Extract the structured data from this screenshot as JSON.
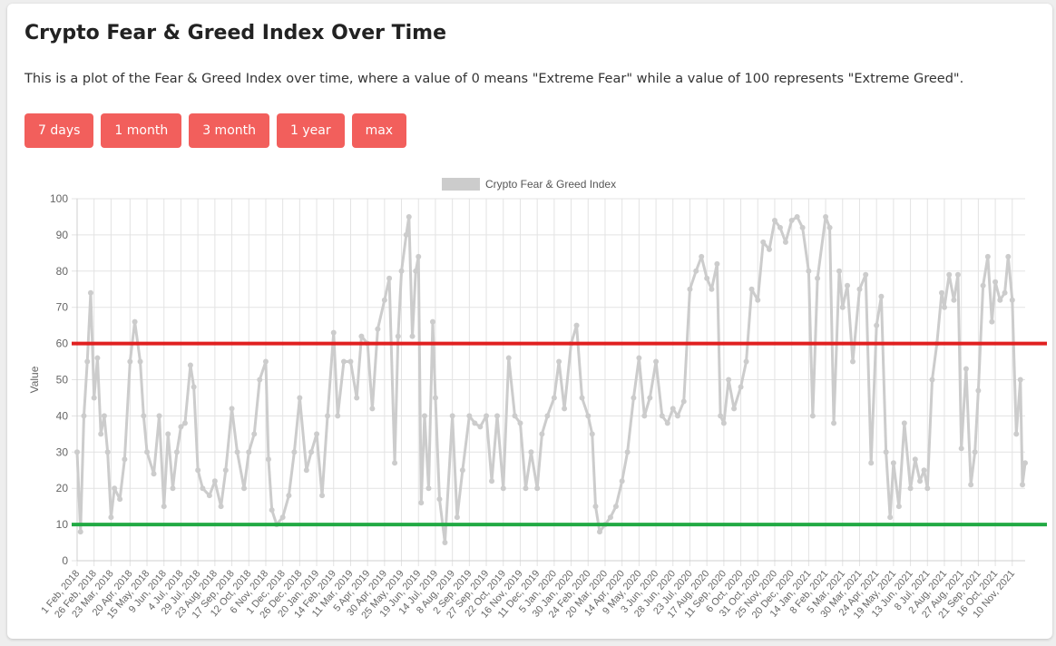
{
  "page": {
    "title": "Crypto Fear & Greed Index Over Time",
    "description": "This is a plot of the Fear & Greed Index over time, where a value of 0 means \"Extreme Fear\" while a value of 100 represents \"Extreme Greed\"."
  },
  "buttons": [
    {
      "label": "7 days"
    },
    {
      "label": "1 month"
    },
    {
      "label": "3 month"
    },
    {
      "label": "1 year"
    },
    {
      "label": "max"
    }
  ],
  "colors": {
    "accent": "#f25f5c",
    "series": "#cccccc",
    "upper_line": "#e02020",
    "lower_line": "#22aa44"
  },
  "chart_data": {
    "type": "line",
    "title": "",
    "xlabel": "",
    "ylabel": "Value",
    "ylim": [
      0,
      100
    ],
    "yticks": [
      0,
      10,
      20,
      30,
      40,
      50,
      60,
      70,
      80,
      90,
      100
    ],
    "grid": true,
    "legend_position": "top-center",
    "xrange": [
      "1 Feb, 2018",
      "29 Nov, 2021"
    ],
    "x_tick_labels": [
      "1 Feb, 2018",
      "26 Feb, 2018",
      "23 Mar, 2018",
      "20 Apr, 2018",
      "15 May, 2018",
      "9 Jun, 2018",
      "4 Jul, 2018",
      "29 Jul, 2018",
      "23 Aug, 2018",
      "17 Sep, 2018",
      "12 Oct, 2018",
      "6 Nov, 2018",
      "1 Dec, 2018",
      "26 Dec, 2018",
      "20 Jan, 2019",
      "14 Feb, 2019",
      "11 Mar, 2019",
      "5 Apr, 2019",
      "30 Apr, 2019",
      "25 May, 2019",
      "19 Jun, 2019",
      "14 Jul, 2019",
      "8 Aug, 2019",
      "2 Sep, 2019",
      "27 Sep, 2019",
      "22 Oct, 2019",
      "16 Nov, 2019",
      "11 Dec, 2019",
      "5 Jan, 2020",
      "30 Jan, 2020",
      "24 Feb, 2020",
      "20 Mar, 2020",
      "14 Apr, 2020",
      "9 May, 2020",
      "3 Jun, 2020",
      "28 Jun, 2020",
      "23 Jul, 2020",
      "17 Aug, 2020",
      "11 Sep, 2020",
      "6 Oct, 2020",
      "31 Oct, 2020",
      "25 Nov, 2020",
      "20 Dec, 2020",
      "14 Jan, 2021",
      "8 Feb, 2021",
      "5 Mar, 2021",
      "30 Mar, 2021",
      "24 Apr, 2021",
      "19 May, 2021",
      "13 Jun, 2021",
      "8 Jul, 2021",
      "2 Aug, 2021",
      "27 Aug, 2021",
      "21 Sep, 2021",
      "16 Oct, 2021",
      "10 Nov, 2021"
    ],
    "series": [
      {
        "name": "Crypto Fear & Greed Index",
        "points": [
          [
            "1 Feb, 2018",
            30
          ],
          [
            "6 Feb, 2018",
            8
          ],
          [
            "11 Feb, 2018",
            40
          ],
          [
            "16 Feb, 2018",
            55
          ],
          [
            "21 Feb, 2018",
            74
          ],
          [
            "26 Feb, 2018",
            45
          ],
          [
            "3 Mar, 2018",
            56
          ],
          [
            "8 Mar, 2018",
            35
          ],
          [
            "13 Mar, 2018",
            40
          ],
          [
            "18 Mar, 2018",
            30
          ],
          [
            "23 Mar, 2018",
            12
          ],
          [
            "28 Mar, 2018",
            20
          ],
          [
            "5 Apr, 2018",
            17
          ],
          [
            "12 Apr, 2018",
            28
          ],
          [
            "20 Apr, 2018",
            55
          ],
          [
            "27 Apr, 2018",
            66
          ],
          [
            "5 May, 2018",
            55
          ],
          [
            "10 May, 2018",
            40
          ],
          [
            "15 May, 2018",
            30
          ],
          [
            "25 May, 2018",
            24
          ],
          [
            "2 Jun, 2018",
            40
          ],
          [
            "9 Jun, 2018",
            15
          ],
          [
            "15 Jun, 2018",
            35
          ],
          [
            "22 Jun, 2018",
            20
          ],
          [
            "28 Jun, 2018",
            30
          ],
          [
            "4 Jul, 2018",
            37
          ],
          [
            "10 Jul, 2018",
            38
          ],
          [
            "18 Jul, 2018",
            54
          ],
          [
            "23 Jul, 2018",
            48
          ],
          [
            "29 Jul, 2018",
            25
          ],
          [
            "5 Aug, 2018",
            20
          ],
          [
            "15 Aug, 2018",
            18
          ],
          [
            "23 Aug, 2018",
            22
          ],
          [
            "1 Sep, 2018",
            15
          ],
          [
            "8 Sep, 2018",
            25
          ],
          [
            "17 Sep, 2018",
            42
          ],
          [
            "25 Sep, 2018",
            30
          ],
          [
            "5 Oct, 2018",
            20
          ],
          [
            "12 Oct, 2018",
            30
          ],
          [
            "20 Oct, 2018",
            35
          ],
          [
            "28 Oct, 2018",
            50
          ],
          [
            "6 Nov, 2018",
            55
          ],
          [
            "10 Nov, 2018",
            28
          ],
          [
            "15 Nov, 2018",
            14
          ],
          [
            "22 Nov, 2018",
            10
          ],
          [
            "1 Dec, 2018",
            12
          ],
          [
            "10 Dec, 2018",
            18
          ],
          [
            "18 Dec, 2018",
            30
          ],
          [
            "26 Dec, 2018",
            45
          ],
          [
            "5 Jan, 2019",
            25
          ],
          [
            "12 Jan, 2019",
            30
          ],
          [
            "20 Jan, 2019",
            35
          ],
          [
            "28 Jan, 2019",
            18
          ],
          [
            "5 Feb, 2019",
            40
          ],
          [
            "14 Feb, 2019",
            63
          ],
          [
            "20 Feb, 2019",
            40
          ],
          [
            "1 Mar, 2019",
            55
          ],
          [
            "11 Mar, 2019",
            55
          ],
          [
            "20 Mar, 2019",
            45
          ],
          [
            "27 Mar, 2019",
            62
          ],
          [
            "5 Apr, 2019",
            60
          ],
          [
            "12 Apr, 2019",
            42
          ],
          [
            "20 Apr, 2019",
            64
          ],
          [
            "30 Apr, 2019",
            72
          ],
          [
            "7 May, 2019",
            78
          ],
          [
            "15 May, 2019",
            27
          ],
          [
            "20 May, 2019",
            62
          ],
          [
            "25 May, 2019",
            80
          ],
          [
            "1 Jun, 2019",
            90
          ],
          [
            "5 Jun, 2019",
            95
          ],
          [
            "10 Jun, 2019",
            62
          ],
          [
            "15 Jun, 2019",
            80
          ],
          [
            "19 Jun, 2019",
            84
          ],
          [
            "23 Jun, 2019",
            16
          ],
          [
            "28 Jun, 2019",
            40
          ],
          [
            "4 Jul, 2019",
            20
          ],
          [
            "10 Jul, 2019",
            66
          ],
          [
            "14 Jul, 2019",
            45
          ],
          [
            "20 Jul, 2019",
            17
          ],
          [
            "28 Jul, 2019",
            5
          ],
          [
            "8 Aug, 2019",
            40
          ],
          [
            "15 Aug, 2019",
            12
          ],
          [
            "23 Aug, 2019",
            25
          ],
          [
            "2 Sep, 2019",
            40
          ],
          [
            "10 Sep, 2019",
            38
          ],
          [
            "18 Sep, 2019",
            37
          ],
          [
            "27 Sep, 2019",
            40
          ],
          [
            "5 Oct, 2019",
            22
          ],
          [
            "13 Oct, 2019",
            40
          ],
          [
            "22 Oct, 2019",
            20
          ],
          [
            "30 Oct, 2019",
            56
          ],
          [
            "8 Nov, 2019",
            40
          ],
          [
            "16 Nov, 2019",
            38
          ],
          [
            "24 Nov, 2019",
            20
          ],
          [
            "2 Dec, 2019",
            30
          ],
          [
            "11 Dec, 2019",
            20
          ],
          [
            "18 Dec, 2019",
            35
          ],
          [
            "26 Dec, 2019",
            40
          ],
          [
            "5 Jan, 2020",
            45
          ],
          [
            "12 Jan, 2020",
            55
          ],
          [
            "20 Jan, 2020",
            42
          ],
          [
            "30 Jan, 2020",
            60
          ],
          [
            "7 Feb, 2020",
            65
          ],
          [
            "15 Feb, 2020",
            45
          ],
          [
            "24 Feb, 2020",
            40
          ],
          [
            "1 Mar, 2020",
            35
          ],
          [
            "6 Mar, 2020",
            15
          ],
          [
            "12 Mar, 2020",
            8
          ],
          [
            "20 Mar, 2020",
            10
          ],
          [
            "28 Mar, 2020",
            12
          ],
          [
            "5 Apr, 2020",
            15
          ],
          [
            "14 Apr, 2020",
            22
          ],
          [
            "22 Apr, 2020",
            30
          ],
          [
            "1 May, 2020",
            45
          ],
          [
            "9 May, 2020",
            56
          ],
          [
            "17 May, 2020",
            40
          ],
          [
            "25 May, 2020",
            45
          ],
          [
            "3 Jun, 2020",
            55
          ],
          [
            "12 Jun, 2020",
            40
          ],
          [
            "20 Jun, 2020",
            38
          ],
          [
            "28 Jun, 2020",
            42
          ],
          [
            "5 Jul, 2020",
            40
          ],
          [
            "14 Jul, 2020",
            44
          ],
          [
            "23 Jul, 2020",
            75
          ],
          [
            "1 Aug, 2020",
            80
          ],
          [
            "9 Aug, 2020",
            84
          ],
          [
            "17 Aug, 2020",
            78
          ],
          [
            "24 Aug, 2020",
            75
          ],
          [
            "1 Sep, 2020",
            82
          ],
          [
            "6 Sep, 2020",
            40
          ],
          [
            "11 Sep, 2020",
            38
          ],
          [
            "18 Sep, 2020",
            50
          ],
          [
            "26 Sep, 2020",
            42
          ],
          [
            "6 Oct, 2020",
            48
          ],
          [
            "14 Oct, 2020",
            55
          ],
          [
            "22 Oct, 2020",
            75
          ],
          [
            "31 Oct, 2020",
            72
          ],
          [
            "8 Nov, 2020",
            88
          ],
          [
            "17 Nov, 2020",
            86
          ],
          [
            "25 Nov, 2020",
            94
          ],
          [
            "3 Dec, 2020",
            92
          ],
          [
            "11 Dec, 2020",
            88
          ],
          [
            "20 Dec, 2020",
            94
          ],
          [
            "28 Dec, 2020",
            95
          ],
          [
            "5 Jan, 2021",
            92
          ],
          [
            "14 Jan, 2021",
            80
          ],
          [
            "20 Jan, 2021",
            40
          ],
          [
            "27 Jan, 2021",
            78
          ],
          [
            "8 Feb, 2021",
            95
          ],
          [
            "14 Feb, 2021",
            92
          ],
          [
            "20 Feb, 2021",
            38
          ],
          [
            "28 Feb, 2021",
            80
          ],
          [
            "5 Mar, 2021",
            70
          ],
          [
            "12 Mar, 2021",
            76
          ],
          [
            "20 Mar, 2021",
            55
          ],
          [
            "30 Mar, 2021",
            75
          ],
          [
            "8 Apr, 2021",
            79
          ],
          [
            "16 Apr, 2021",
            27
          ],
          [
            "24 Apr, 2021",
            65
          ],
          [
            "1 May, 2021",
            73
          ],
          [
            "8 May, 2021",
            30
          ],
          [
            "14 May, 2021",
            12
          ],
          [
            "19 May, 2021",
            27
          ],
          [
            "27 May, 2021",
            15
          ],
          [
            "4 Jun, 2021",
            38
          ],
          [
            "13 Jun, 2021",
            20
          ],
          [
            "20 Jun, 2021",
            28
          ],
          [
            "27 Jun, 2021",
            22
          ],
          [
            "3 Jul, 2021",
            25
          ],
          [
            "8 Jul, 2021",
            20
          ],
          [
            "15 Jul, 2021",
            50
          ],
          [
            "22 Jul, 2021",
            60
          ],
          [
            "29 Jul, 2021",
            74
          ],
          [
            "2 Aug, 2021",
            70
          ],
          [
            "9 Aug, 2021",
            79
          ],
          [
            "16 Aug, 2021",
            72
          ],
          [
            "22 Aug, 2021",
            79
          ],
          [
            "27 Aug, 2021",
            31
          ],
          [
            "3 Sep, 2021",
            53
          ],
          [
            "10 Sep, 2021",
            21
          ],
          [
            "16 Sep, 2021",
            30
          ],
          [
            "21 Sep, 2021",
            47
          ],
          [
            "28 Sep, 2021",
            76
          ],
          [
            "5 Oct, 2021",
            84
          ],
          [
            "11 Oct, 2021",
            66
          ],
          [
            "16 Oct, 2021",
            77
          ],
          [
            "23 Oct, 2021",
            72
          ],
          [
            "30 Oct, 2021",
            74
          ],
          [
            "4 Nov, 2021",
            84
          ],
          [
            "10 Nov, 2021",
            72
          ],
          [
            "16 Nov, 2021",
            35
          ],
          [
            "22 Nov, 2021",
            50
          ],
          [
            "25 Nov, 2021",
            21
          ],
          [
            "29 Nov, 2021",
            27
          ]
        ]
      }
    ],
    "reference_lines": [
      {
        "name": "upper-threshold",
        "y": 60,
        "color": "#e02020"
      },
      {
        "name": "lower-threshold",
        "y": 10,
        "color": "#22aa44"
      }
    ]
  }
}
